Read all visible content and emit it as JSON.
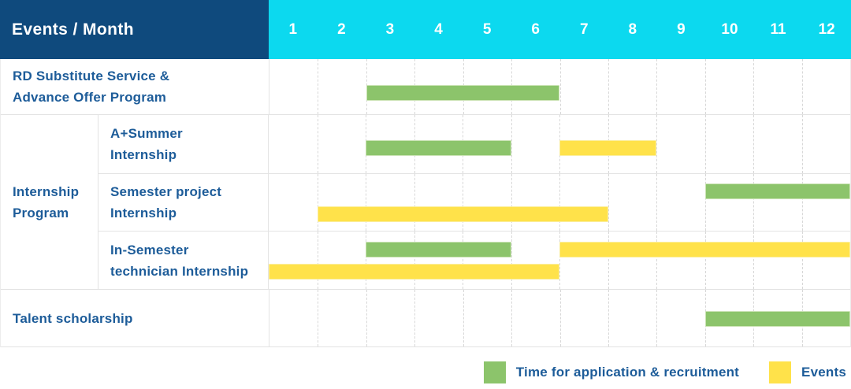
{
  "header": {
    "title": "Events / Month"
  },
  "colors": {
    "corner_header_bg": "#0F4A7D",
    "month_header_bg": "#0CD9EF",
    "application_bar": "#8CC46B",
    "events_bar": "#FFE24A",
    "label_text": "#1D5C99",
    "header_text": "#FFFFFF"
  },
  "group_label": "Internship\nProgram",
  "chart_data": {
    "type": "bar",
    "subtype": "gantt-schedule",
    "title": "Events / Month",
    "months": [
      1,
      2,
      3,
      4,
      5,
      6,
      7,
      8,
      9,
      10,
      11,
      12
    ],
    "x_range": [
      1,
      12
    ],
    "grid": "dashed-vertical",
    "legend_position": "bottom-right",
    "rows": [
      {
        "label": "RD Substitute Service &\nAdvance Offer Program",
        "group": null,
        "bars": [
          {
            "type": "application",
            "start_month": 3,
            "end_month": 6,
            "line": "single"
          }
        ]
      },
      {
        "label": "A+Summer\nInternship",
        "group": "Internship Program",
        "bars": [
          {
            "type": "application",
            "start_month": 3,
            "end_month": 5,
            "line": "single"
          },
          {
            "type": "events",
            "start_month": 7,
            "end_month": 8,
            "line": "single"
          }
        ]
      },
      {
        "label": "Semester project\nInternship",
        "group": "Internship Program",
        "bars": [
          {
            "type": "application",
            "start_month": 10,
            "end_month": 12,
            "line": "top"
          },
          {
            "type": "events",
            "start_month": 2,
            "end_month": 7,
            "line": "bottom"
          }
        ]
      },
      {
        "label": "In-Semester\ntechnician Internship",
        "group": "Internship Program",
        "bars": [
          {
            "type": "application",
            "start_month": 3,
            "end_month": 5,
            "line": "top"
          },
          {
            "type": "events",
            "start_month": 7,
            "end_month": 12,
            "line": "top"
          },
          {
            "type": "events",
            "start_month": 1,
            "end_month": 6,
            "line": "bottom"
          }
        ]
      },
      {
        "label": "Talent scholarship",
        "group": null,
        "bars": [
          {
            "type": "application",
            "start_month": 10,
            "end_month": 12,
            "line": "single"
          }
        ]
      }
    ],
    "legend": [
      {
        "swatch": "green",
        "label": "Time for application & recruitment"
      },
      {
        "swatch": "yellow",
        "label": "Events"
      }
    ]
  }
}
